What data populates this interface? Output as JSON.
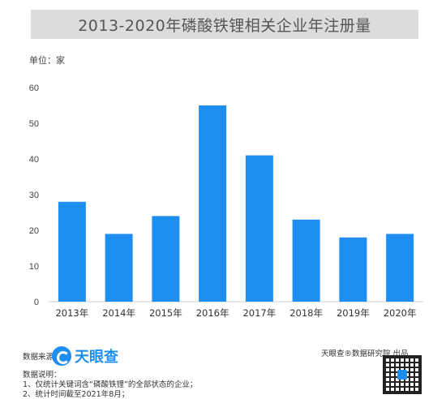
{
  "title": "2013-2020年磷酸铁锂相关企业年注册量",
  "unit_label": "单位：家",
  "chart_data": {
    "type": "bar",
    "categories": [
      "2013年",
      "2014年",
      "2015年",
      "2016年",
      "2017年",
      "2018年",
      "2019年",
      "2020年"
    ],
    "values": [
      28,
      19,
      24,
      55,
      41,
      23,
      18,
      19
    ],
    "ylim": [
      0,
      60
    ],
    "yticks": [
      0,
      10,
      20,
      30,
      40,
      50,
      60
    ],
    "grid": false,
    "bar_color": "#1e8ef0"
  },
  "footer": {
    "source_label": "数据来源：",
    "logo_text": "天眼查",
    "credit": "天眼查®数据研究院 出品",
    "notes_title": "数据说明：",
    "note1": "1、仅统计关键词含“磷酸铁锂”的全部状态的企业；",
    "note2": "2、统计时间截至2021年8月；"
  }
}
